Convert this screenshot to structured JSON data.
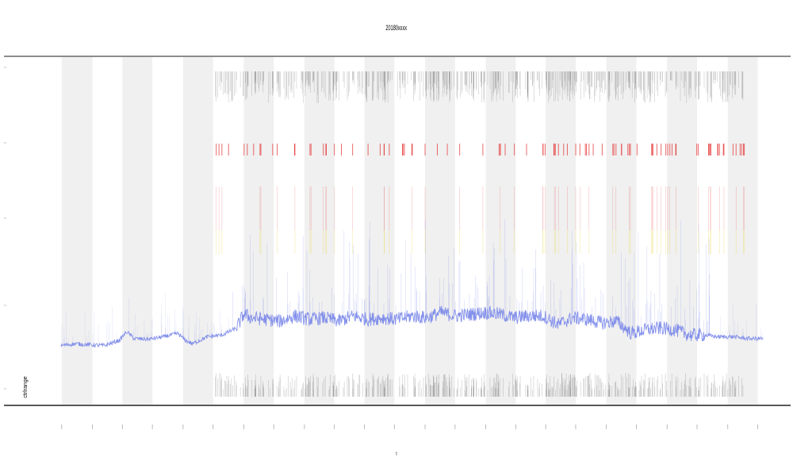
{
  "chart_data": {
    "type": "line",
    "title": "20180xxxx",
    "xlabel": "t",
    "ylabel": "",
    "left_label": "ctrlrange",
    "xlim": [
      0,
      100
    ],
    "ylim": [
      0,
      100
    ],
    "grid": false,
    "legend": "none",
    "colors": {
      "signal": "#6f7ee8",
      "bands": "#f0f0f0",
      "events": "#555555",
      "high": "#e53030",
      "mid": "#e8d23a",
      "frame": "#666666",
      "axis": "#222222"
    },
    "bands": [
      [
        4.1,
        8.3
      ],
      [
        12.4,
        16.5
      ],
      [
        20.7,
        24.8
      ],
      [
        29.0,
        33.1
      ],
      [
        37.3,
        41.4
      ],
      [
        45.5,
        49.6
      ],
      [
        53.8,
        57.9
      ],
      [
        62.1,
        66.2
      ],
      [
        70.3,
        74.4
      ],
      [
        78.6,
        82.7
      ],
      [
        86.9,
        91.0
      ],
      [
        95.2,
        99.3
      ]
    ],
    "x_ticks": [
      4.1,
      8.3,
      12.4,
      16.5,
      20.7,
      24.8,
      29.0,
      33.1,
      37.3,
      41.4,
      45.5,
      49.6,
      53.8,
      57.9,
      62.1,
      66.2,
      70.3,
      74.4,
      78.6,
      82.7,
      86.9,
      91.0,
      95.2,
      99.3
    ],
    "x_tick_labels": [
      "",
      "",
      "",
      "",
      "",
      "",
      "",
      "",
      "",
      "",
      "",
      "",
      "",
      "",
      "",
      "",
      "",
      "",
      "",
      "",
      "",
      "",
      "",
      ""
    ],
    "series": [
      {
        "x": [
          4,
          6,
          8,
          10,
          12,
          13,
          14,
          16,
          18,
          20,
          21,
          22,
          24,
          26,
          28,
          29,
          30,
          32,
          34,
          36,
          38,
          40,
          42,
          44,
          46,
          48,
          50,
          52,
          54,
          56,
          58,
          60,
          62,
          64,
          66,
          68,
          70,
          72,
          74,
          76,
          78,
          80,
          82,
          84,
          86,
          88,
          90,
          92,
          94,
          96,
          98,
          100
        ],
        "y": [
          17,
          17.5,
          17.2,
          17,
          18.5,
          21,
          19,
          18.8,
          19.5,
          20.5,
          18.5,
          17.5,
          19.5,
          20,
          22,
          26,
          25,
          24.5,
          24,
          25.5,
          24.5,
          25,
          24,
          25.5,
          24.5,
          25,
          24.5,
          25.5,
          25,
          26.5,
          25.5,
          26,
          26.5,
          26,
          25,
          25.5,
          25.5,
          23,
          25,
          24.5,
          23.5,
          24,
          20.5,
          21.5,
          22,
          21.5,
          20,
          20,
          19.5,
          19.5,
          19,
          19
        ]
      }
    ]
  }
}
